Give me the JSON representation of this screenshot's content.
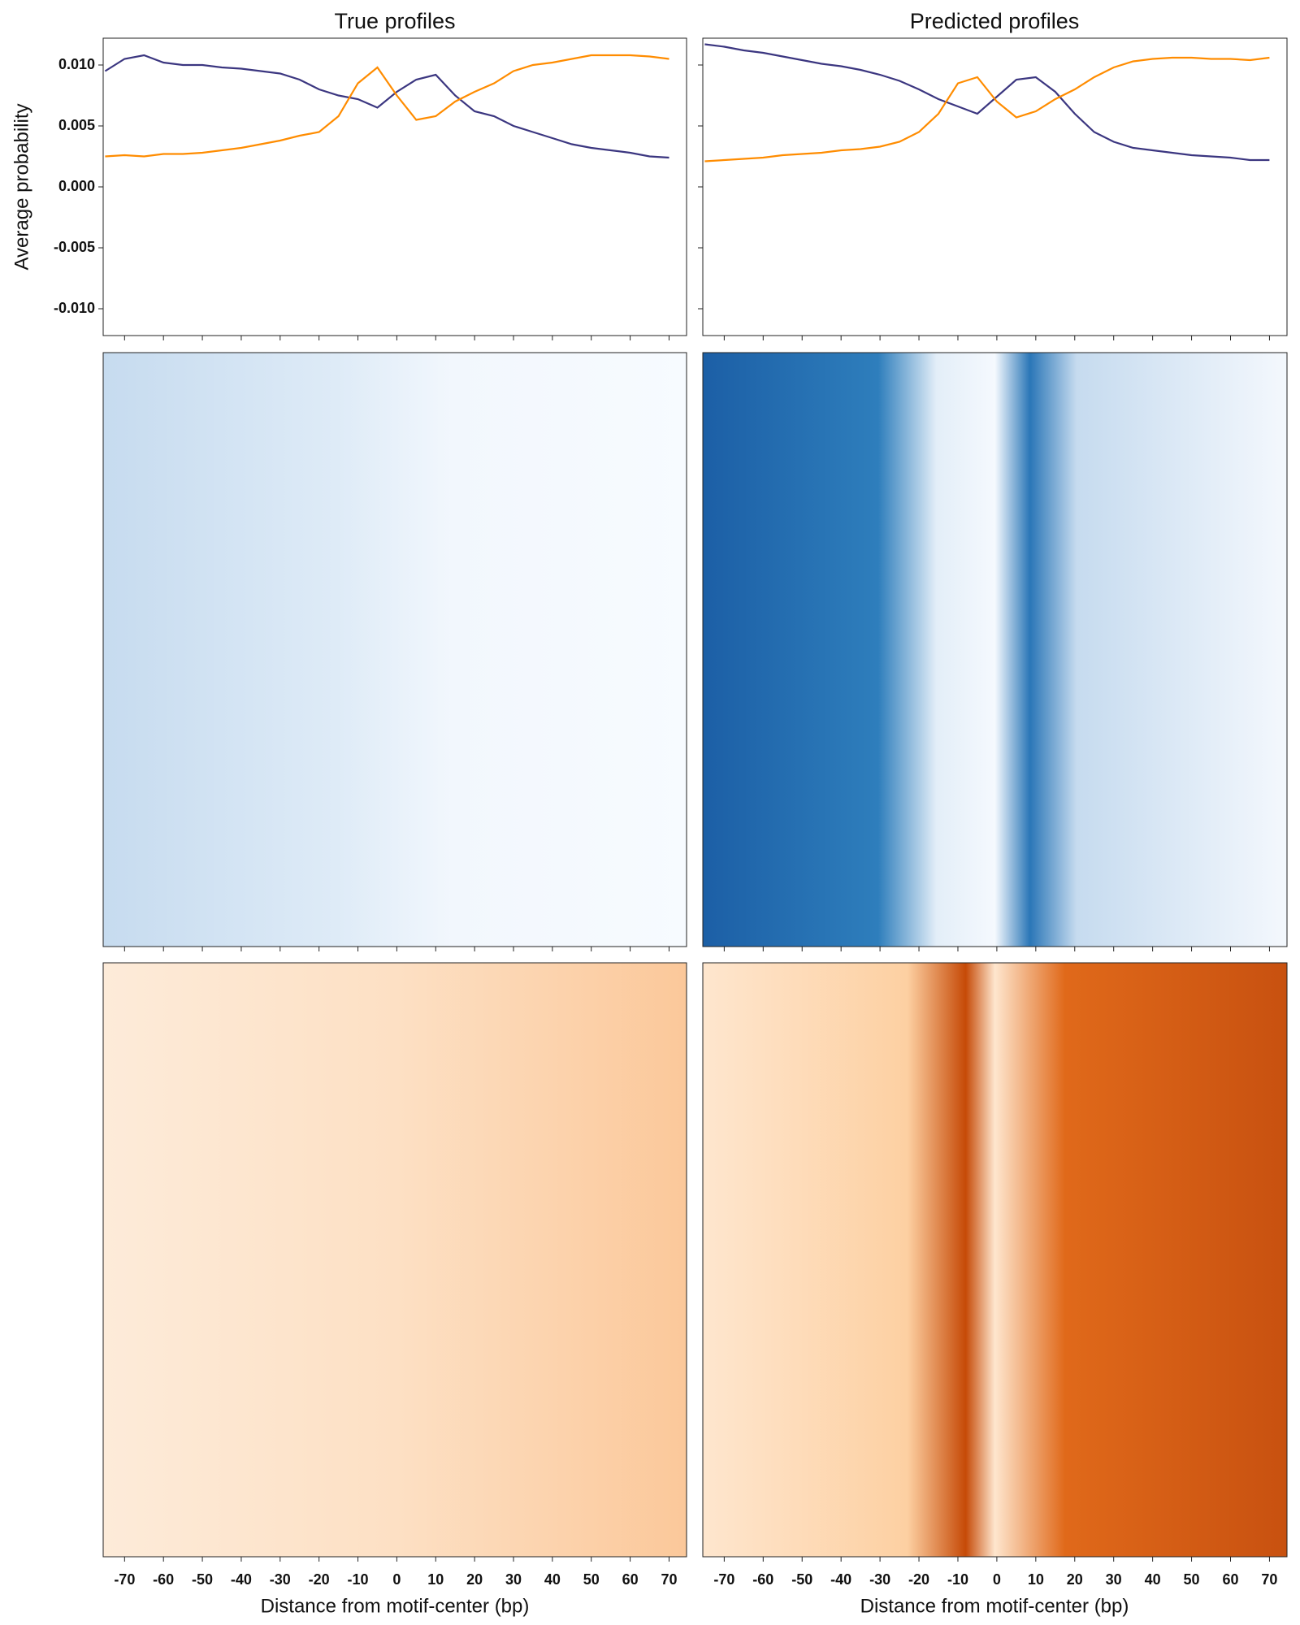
{
  "chart_data": [
    {
      "type": "line",
      "title": "True profiles",
      "ylabel": "Average probability",
      "xlabel": "Distance from motif-center (bp)",
      "x": [
        -75,
        -70,
        -65,
        -60,
        -55,
        -50,
        -45,
        -40,
        -35,
        -30,
        -25,
        -20,
        -15,
        -10,
        -5,
        0,
        5,
        10,
        15,
        20,
        25,
        30,
        35,
        40,
        45,
        50,
        55,
        60,
        65,
        70
      ],
      "series": [
        {
          "color": "#3b3680",
          "values": [
            0.0095,
            0.0105,
            0.0108,
            0.0102,
            0.01,
            0.01,
            0.0098,
            0.0097,
            0.0095,
            0.0093,
            0.0088,
            0.008,
            0.0075,
            0.0072,
            0.0065,
            0.0078,
            0.0088,
            0.0092,
            0.0075,
            0.0062,
            0.0058,
            0.005,
            0.0045,
            0.004,
            0.0035,
            0.0032,
            0.003,
            0.0028,
            0.0025,
            0.0024
          ]
        },
        {
          "color": "#ff8c00",
          "values": [
            0.0025,
            0.0026,
            0.0025,
            0.0027,
            0.0027,
            0.0028,
            0.003,
            0.0032,
            0.0035,
            0.0038,
            0.0042,
            0.0045,
            0.0058,
            0.0085,
            0.0098,
            0.0075,
            0.0055,
            0.0058,
            0.007,
            0.0078,
            0.0085,
            0.0095,
            0.01,
            0.0102,
            0.0105,
            0.0108,
            0.0108,
            0.0108,
            0.0107,
            0.0105
          ]
        }
      ],
      "xlim": [
        -75.5,
        74.5
      ],
      "xticks": [
        -70,
        -60,
        -50,
        -40,
        -30,
        -20,
        -10,
        0,
        10,
        20,
        30,
        40,
        50,
        60,
        70
      ],
      "ylim": [
        -0.0122,
        0.0122
      ],
      "yticks": [
        {
          "value": -0.01,
          "label": "-0.010"
        },
        {
          "value": -0.005,
          "label": "-0.005"
        },
        {
          "value": 0,
          "label": "0.000"
        },
        {
          "value": 0.005,
          "label": "0.005"
        },
        {
          "value": 0.01,
          "label": "0.010"
        }
      ]
    },
    {
      "type": "line",
      "title": "Predicted profiles",
      "xlabel": "Distance from motif-center (bp)",
      "x": [
        -75,
        -70,
        -65,
        -60,
        -55,
        -50,
        -45,
        -40,
        -35,
        -30,
        -25,
        -20,
        -15,
        -10,
        -5,
        0,
        5,
        10,
        15,
        20,
        25,
        30,
        35,
        40,
        45,
        50,
        55,
        60,
        65,
        70
      ],
      "series": [
        {
          "color": "#3b3680",
          "values": [
            0.0117,
            0.0115,
            0.0112,
            0.011,
            0.0107,
            0.0104,
            0.0101,
            0.0099,
            0.0096,
            0.0092,
            0.0087,
            0.008,
            0.0072,
            0.0066,
            0.006,
            0.0074,
            0.0088,
            0.009,
            0.0078,
            0.006,
            0.0045,
            0.0037,
            0.0032,
            0.003,
            0.0028,
            0.0026,
            0.0025,
            0.0024,
            0.0022,
            0.0022
          ]
        },
        {
          "color": "#ff8c00",
          "values": [
            0.0021,
            0.0022,
            0.0023,
            0.0024,
            0.0026,
            0.0027,
            0.0028,
            0.003,
            0.0031,
            0.0033,
            0.0037,
            0.0045,
            0.006,
            0.0085,
            0.009,
            0.007,
            0.0057,
            0.0062,
            0.0072,
            0.008,
            0.009,
            0.0098,
            0.0103,
            0.0105,
            0.0106,
            0.0106,
            0.0105,
            0.0105,
            0.0104,
            0.0106
          ]
        }
      ],
      "xlim": [
        -75.5,
        74.5
      ],
      "xticks": [
        -70,
        -60,
        -50,
        -40,
        -30,
        -20,
        -10,
        0,
        10,
        20,
        30,
        40,
        50,
        60,
        70
      ],
      "ylim": [
        -0.0122,
        0.0122
      ],
      "yticks": [
        -0.01,
        -0.005,
        0,
        0.005,
        0.01
      ]
    }
  ]
}
